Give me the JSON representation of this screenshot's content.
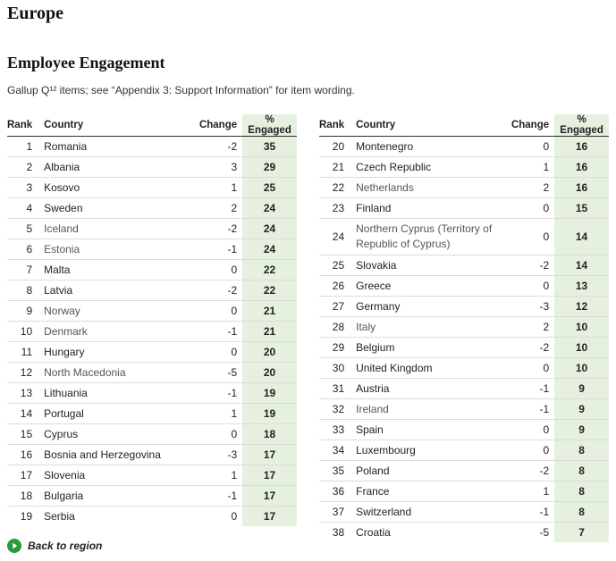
{
  "header": {
    "region_title": "Europe",
    "section_title": "Employee Engagement",
    "subtitle": "Gallup Q¹² items; see “Appendix 3: Support Information” for item wording."
  },
  "table": {
    "columns": {
      "rank": "Rank",
      "country": "Country",
      "change": "Change",
      "engaged": "% Engaged"
    },
    "highlight_color": "#e6f0df",
    "rows": [
      {
        "rank": "1",
        "country": "Romania",
        "change": "-2",
        "engaged": "35",
        "link": false
      },
      {
        "rank": "2",
        "country": "Albania",
        "change": "3",
        "engaged": "29",
        "link": false
      },
      {
        "rank": "3",
        "country": "Kosovo",
        "change": "1",
        "engaged": "25",
        "link": false
      },
      {
        "rank": "4",
        "country": "Sweden",
        "change": "2",
        "engaged": "24",
        "link": false
      },
      {
        "rank": "5",
        "country": "Iceland",
        "change": "-2",
        "engaged": "24",
        "link": true
      },
      {
        "rank": "6",
        "country": "Estonia",
        "change": "-1",
        "engaged": "24",
        "link": true
      },
      {
        "rank": "7",
        "country": "Malta",
        "change": "0",
        "engaged": "22",
        "link": false
      },
      {
        "rank": "8",
        "country": "Latvia",
        "change": "-2",
        "engaged": "22",
        "link": false
      },
      {
        "rank": "9",
        "country": "Norway",
        "change": "0",
        "engaged": "21",
        "link": true
      },
      {
        "rank": "10",
        "country": "Denmark",
        "change": "-1",
        "engaged": "21",
        "link": true
      },
      {
        "rank": "11",
        "country": "Hungary",
        "change": "0",
        "engaged": "20",
        "link": false
      },
      {
        "rank": "12",
        "country": "North Macedonia",
        "change": "-5",
        "engaged": "20",
        "link": true
      },
      {
        "rank": "13",
        "country": "Lithuania",
        "change": "-1",
        "engaged": "19",
        "link": false
      },
      {
        "rank": "14",
        "country": "Portugal",
        "change": "1",
        "engaged": "19",
        "link": false
      },
      {
        "rank": "15",
        "country": "Cyprus",
        "change": "0",
        "engaged": "18",
        "link": false
      },
      {
        "rank": "16",
        "country": "Bosnia and Herzegovina",
        "change": "-3",
        "engaged": "17",
        "link": false
      },
      {
        "rank": "17",
        "country": "Slovenia",
        "change": "1",
        "engaged": "17",
        "link": false
      },
      {
        "rank": "18",
        "country": "Bulgaria",
        "change": "-1",
        "engaged": "17",
        "link": false
      },
      {
        "rank": "19",
        "country": "Serbia",
        "change": "0",
        "engaged": "17",
        "link": false
      },
      {
        "rank": "20",
        "country": "Montenegro",
        "change": "0",
        "engaged": "16",
        "link": false
      },
      {
        "rank": "21",
        "country": "Czech Republic",
        "change": "1",
        "engaged": "16",
        "link": false
      },
      {
        "rank": "22",
        "country": "Netherlands",
        "change": "2",
        "engaged": "16",
        "link": true
      },
      {
        "rank": "23",
        "country": "Finland",
        "change": "0",
        "engaged": "15",
        "link": false
      },
      {
        "rank": "24",
        "country": "Northern Cyprus (Territory of Republic of Cyprus)",
        "change": "0",
        "engaged": "14",
        "link": true
      },
      {
        "rank": "25",
        "country": "Slovakia",
        "change": "-2",
        "engaged": "14",
        "link": false
      },
      {
        "rank": "26",
        "country": "Greece",
        "change": "0",
        "engaged": "13",
        "link": false
      },
      {
        "rank": "27",
        "country": "Germany",
        "change": "-3",
        "engaged": "12",
        "link": false
      },
      {
        "rank": "28",
        "country": "Italy",
        "change": "2",
        "engaged": "10",
        "link": true
      },
      {
        "rank": "29",
        "country": "Belgium",
        "change": "-2",
        "engaged": "10",
        "link": false
      },
      {
        "rank": "30",
        "country": "United Kingdom",
        "change": "0",
        "engaged": "10",
        "link": false
      },
      {
        "rank": "31",
        "country": "Austria",
        "change": "-1",
        "engaged": "9",
        "link": false
      },
      {
        "rank": "32",
        "country": "Ireland",
        "change": "-1",
        "engaged": "9",
        "link": true
      },
      {
        "rank": "33",
        "country": "Spain",
        "change": "0",
        "engaged": "9",
        "link": false
      },
      {
        "rank": "34",
        "country": "Luxembourg",
        "change": "0",
        "engaged": "8",
        "link": false
      },
      {
        "rank": "35",
        "country": "Poland",
        "change": "-2",
        "engaged": "8",
        "link": false
      },
      {
        "rank": "36",
        "country": "France",
        "change": "1",
        "engaged": "8",
        "link": false
      },
      {
        "rank": "37",
        "country": "Switzerland",
        "change": "-1",
        "engaged": "8",
        "link": false
      },
      {
        "rank": "38",
        "country": "Croatia",
        "change": "-5",
        "engaged": "7",
        "link": false
      }
    ]
  },
  "footer": {
    "back_label": "Back to region",
    "back_icon": "play-circle-icon",
    "back_icon_color": "#2b9a3d"
  }
}
